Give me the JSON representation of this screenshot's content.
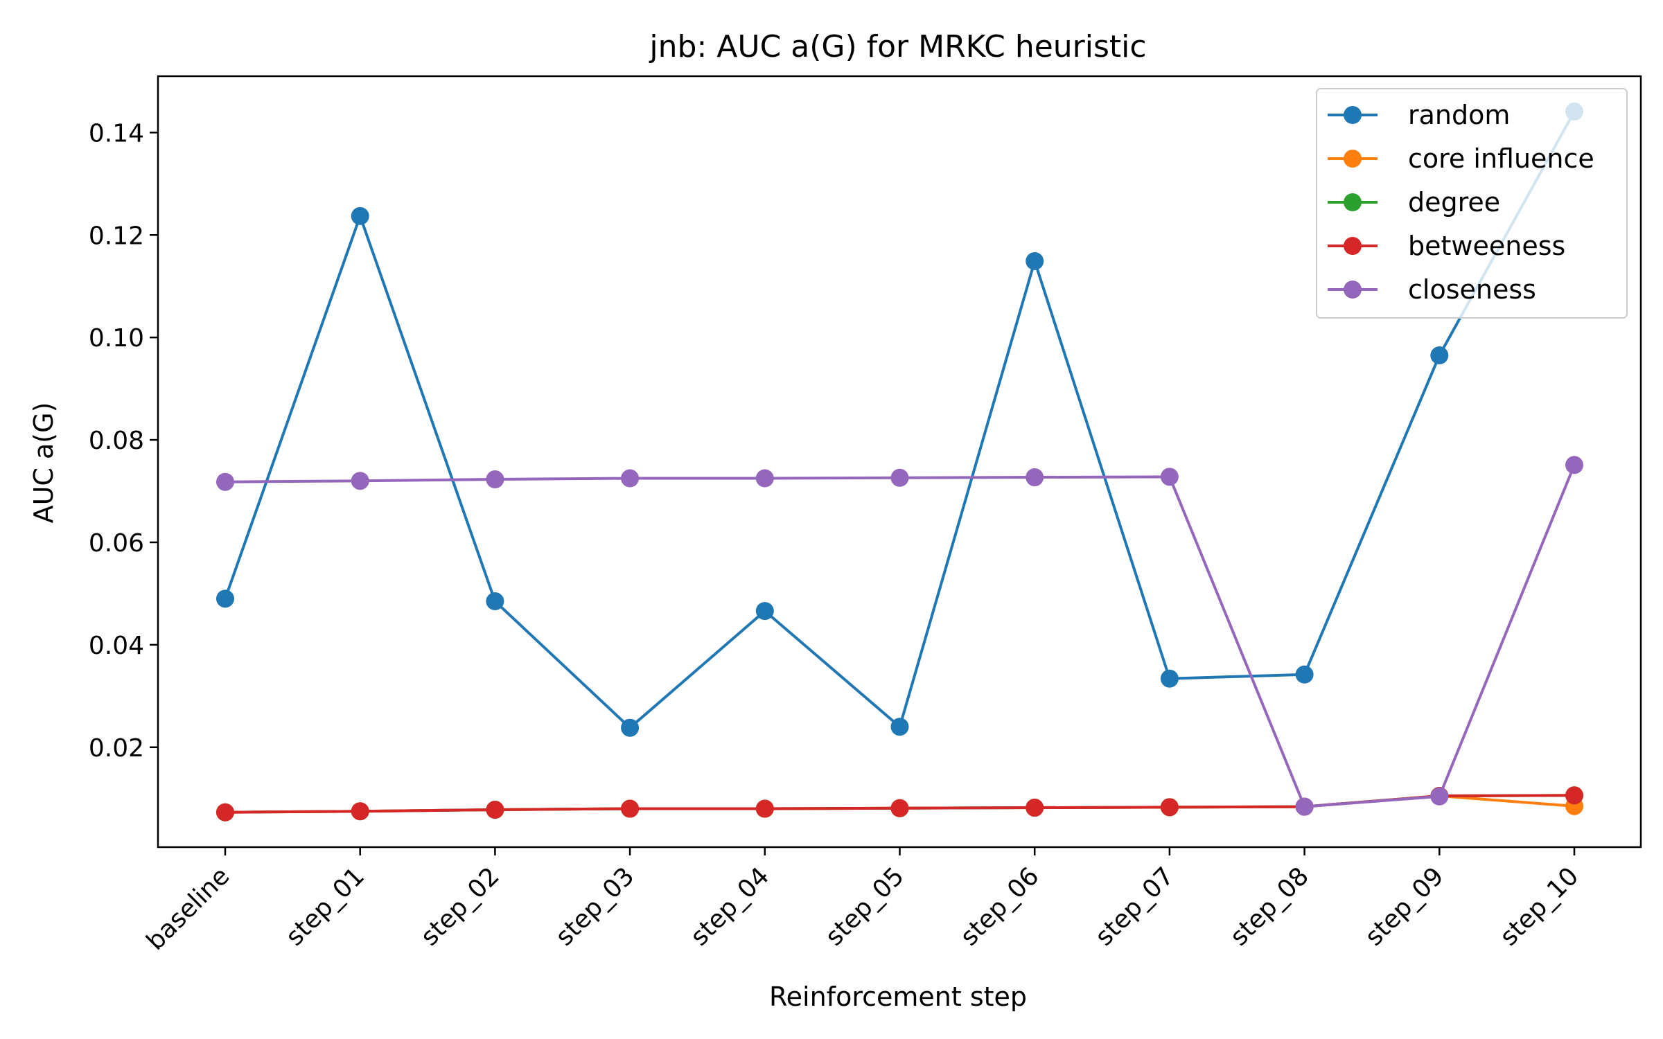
{
  "chart_data": {
    "type": "line",
    "title": "jnb: AUC a(G) for MRKC heuristic",
    "xlabel": "Reinforcement step",
    "ylabel": "AUC a(G)",
    "categories": [
      "baseline",
      "step_01",
      "step_02",
      "step_03",
      "step_04",
      "step_05",
      "step_06",
      "step_07",
      "step_08",
      "step_09",
      "step_10"
    ],
    "ylim": [
      0.0005,
      0.151
    ],
    "yticks": [
      0.02,
      0.04,
      0.06,
      0.08,
      0.1,
      0.12,
      0.14
    ],
    "ytick_labels": [
      "0.02",
      "0.04",
      "0.06",
      "0.08",
      "0.10",
      "0.12",
      "0.14"
    ],
    "grid": false,
    "legend_position": "top-right",
    "series": [
      {
        "name": "random",
        "color": "#1f77b4",
        "values": [
          0.049,
          0.1237,
          0.0485,
          0.0238,
          0.0466,
          0.024,
          0.1149,
          0.0334,
          0.0342,
          0.0965,
          0.1441
        ]
      },
      {
        "name": "core influence",
        "color": "#ff7f0e",
        "values": [
          0.0073,
          0.0075,
          0.0078,
          0.008,
          0.008,
          0.0081,
          0.0082,
          0.0083,
          0.0084,
          0.0105,
          0.0085
        ]
      },
      {
        "name": "degree",
        "color": "#2ca02c",
        "values": [
          0.0073,
          0.0075,
          0.0078,
          0.008,
          0.008,
          0.0081,
          0.0082,
          0.0083,
          0.0084,
          0.0105,
          0.0106
        ]
      },
      {
        "name": "betweeness",
        "color": "#d62728",
        "values": [
          0.0073,
          0.0075,
          0.0078,
          0.008,
          0.008,
          0.0081,
          0.0082,
          0.0083,
          0.0084,
          0.0105,
          0.0106
        ]
      },
      {
        "name": "closeness",
        "color": "#9467bd",
        "values": [
          0.0718,
          0.072,
          0.0723,
          0.0725,
          0.0725,
          0.0726,
          0.0727,
          0.0728,
          0.0084,
          0.0104,
          0.0751
        ]
      }
    ]
  }
}
